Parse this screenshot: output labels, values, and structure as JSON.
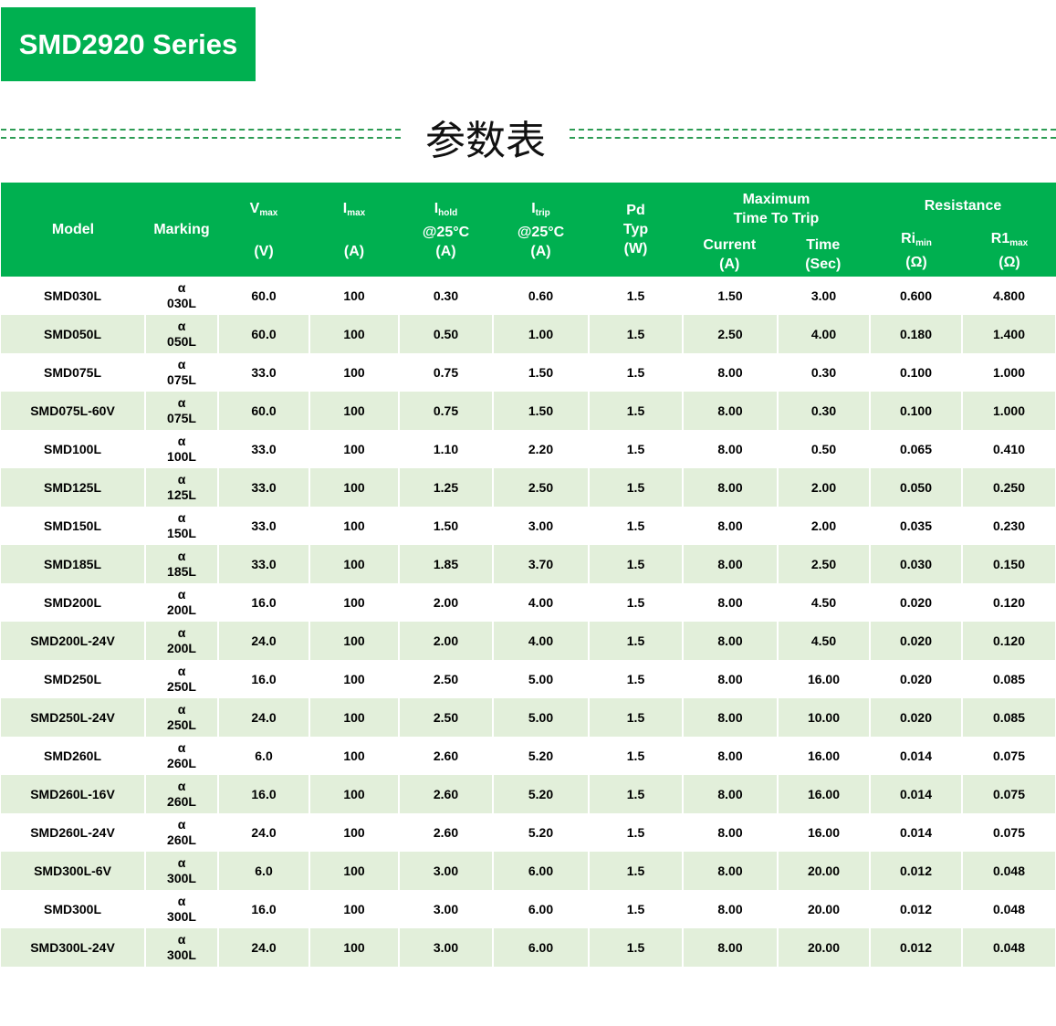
{
  "title": "SMD2920 Series",
  "subtitle": "参数表",
  "header": {
    "model": "Model",
    "marking": "Marking",
    "vmax": "V",
    "vmax_sub": "max",
    "vmax_unit": "(V)",
    "imax": "I",
    "imax_sub": "max",
    "imax_unit": "(A)",
    "ihold": "I",
    "ihold_sub": "hold",
    "ihold_cond": "@25°C",
    "ihold_unit": "(A)",
    "itrip": "I",
    "itrip_sub": "trip",
    "itrip_cond": "@25°C",
    "itrip_unit": "(A)",
    "pd": "Pd",
    "pd_typ": "Typ",
    "pd_unit": "(W)",
    "mttt": "Maximum",
    "mttt2": "Time To Trip",
    "current": "Current",
    "current_unit": "(A)",
    "time": "Time",
    "time_unit": "(Sec)",
    "resistance": "Resistance",
    "rimin": "Ri",
    "rimin_sub": "min",
    "rimin_unit": "(Ω)",
    "r1max": "R1",
    "r1max_sub": "max",
    "r1max_unit": "(Ω)"
  },
  "accent": "#00b050",
  "row_alt": "#e2efda",
  "rows": [
    [
      "SMD030L",
      "α",
      "030L",
      "60.0",
      "100",
      "0.30",
      "0.60",
      "1.5",
      "1.50",
      "3.00",
      "0.600",
      "4.800"
    ],
    [
      "SMD050L",
      "α",
      "050L",
      "60.0",
      "100",
      "0.50",
      "1.00",
      "1.5",
      "2.50",
      "4.00",
      "0.180",
      "1.400"
    ],
    [
      "SMD075L",
      "α",
      "075L",
      "33.0",
      "100",
      "0.75",
      "1.50",
      "1.5",
      "8.00",
      "0.30",
      "0.100",
      "1.000"
    ],
    [
      "SMD075L-60V",
      "α",
      "075L",
      "60.0",
      "100",
      "0.75",
      "1.50",
      "1.5",
      "8.00",
      "0.30",
      "0.100",
      "1.000"
    ],
    [
      "SMD100L",
      "α",
      "100L",
      "33.0",
      "100",
      "1.10",
      "2.20",
      "1.5",
      "8.00",
      "0.50",
      "0.065",
      "0.410"
    ],
    [
      "SMD125L",
      "α",
      "125L",
      "33.0",
      "100",
      "1.25",
      "2.50",
      "1.5",
      "8.00",
      "2.00",
      "0.050",
      "0.250"
    ],
    [
      "SMD150L",
      "α",
      "150L",
      "33.0",
      "100",
      "1.50",
      "3.00",
      "1.5",
      "8.00",
      "2.00",
      "0.035",
      "0.230"
    ],
    [
      "SMD185L",
      "α",
      "185L",
      "33.0",
      "100",
      "1.85",
      "3.70",
      "1.5",
      "8.00",
      "2.50",
      "0.030",
      "0.150"
    ],
    [
      "SMD200L",
      "α",
      "200L",
      "16.0",
      "100",
      "2.00",
      "4.00",
      "1.5",
      "8.00",
      "4.50",
      "0.020",
      "0.120"
    ],
    [
      "SMD200L-24V",
      "α",
      "200L",
      "24.0",
      "100",
      "2.00",
      "4.00",
      "1.5",
      "8.00",
      "4.50",
      "0.020",
      "0.120"
    ],
    [
      "SMD250L",
      "α",
      "250L",
      "16.0",
      "100",
      "2.50",
      "5.00",
      "1.5",
      "8.00",
      "16.00",
      "0.020",
      "0.085"
    ],
    [
      "SMD250L-24V",
      "α",
      "250L",
      "24.0",
      "100",
      "2.50",
      "5.00",
      "1.5",
      "8.00",
      "10.00",
      "0.020",
      "0.085"
    ],
    [
      "SMD260L",
      "α",
      "260L",
      "6.0",
      "100",
      "2.60",
      "5.20",
      "1.5",
      "8.00",
      "16.00",
      "0.014",
      "0.075"
    ],
    [
      "SMD260L-16V",
      "α",
      "260L",
      "16.0",
      "100",
      "2.60",
      "5.20",
      "1.5",
      "8.00",
      "16.00",
      "0.014",
      "0.075"
    ],
    [
      "SMD260L-24V",
      "α",
      "260L",
      "24.0",
      "100",
      "2.60",
      "5.20",
      "1.5",
      "8.00",
      "16.00",
      "0.014",
      "0.075"
    ],
    [
      "SMD300L-6V",
      "α",
      "300L",
      "6.0",
      "100",
      "3.00",
      "6.00",
      "1.5",
      "8.00",
      "20.00",
      "0.012",
      "0.048"
    ],
    [
      "SMD300L",
      "α",
      "300L",
      "16.0",
      "100",
      "3.00",
      "6.00",
      "1.5",
      "8.00",
      "20.00",
      "0.012",
      "0.048"
    ],
    [
      "SMD300L-24V",
      "α",
      "300L",
      "24.0",
      "100",
      "3.00",
      "6.00",
      "1.5",
      "8.00",
      "20.00",
      "0.012",
      "0.048"
    ]
  ]
}
